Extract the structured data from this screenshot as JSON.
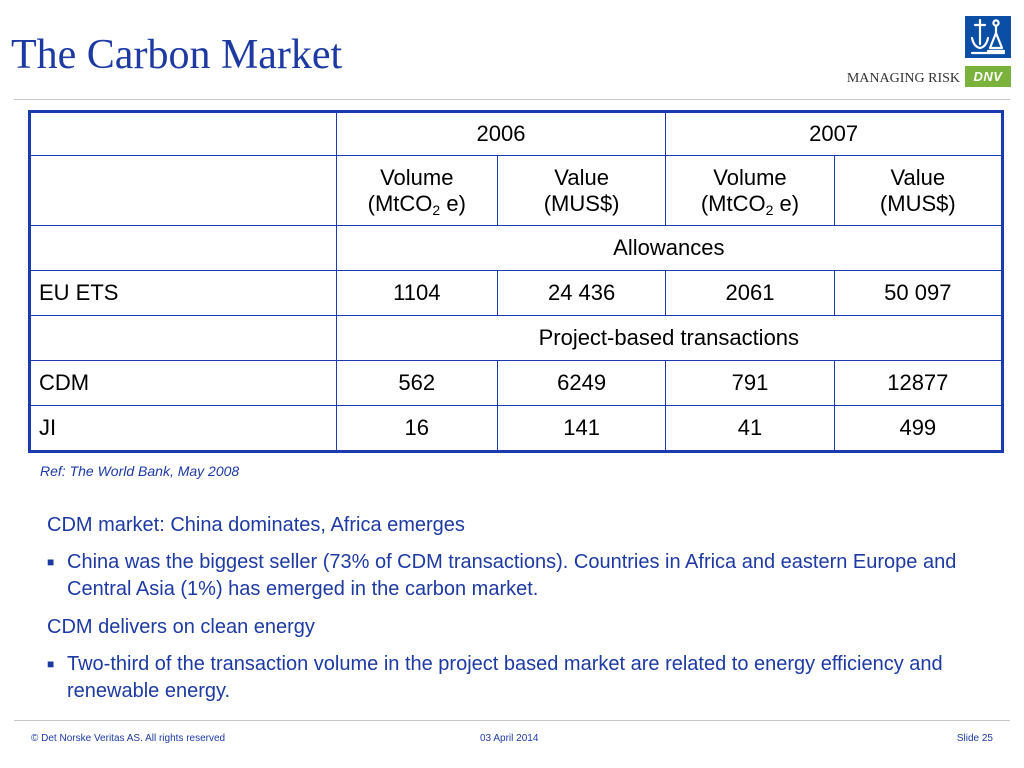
{
  "slide": {
    "title": "The Carbon Market",
    "logo": {
      "tagline": "MANAGING RISK",
      "brand": "DNV",
      "icon": "dnv-emblem-icon"
    },
    "colors": {
      "title": "#1d3aa3",
      "table_border": "#1c3bb0",
      "logo_blue": "#0a4fa5",
      "logo_green": "#7ab23b"
    }
  },
  "table": {
    "years": [
      "2006",
      "2007"
    ],
    "volume_header": "Volume",
    "volume_unit_pre": "(MtCO",
    "volume_unit_sub": "2",
    "volume_unit_post": " e)",
    "value_header": "Value",
    "value_unit": "(MUS$)",
    "sections": {
      "allowances": "Allowances",
      "project": "Project-based transactions"
    },
    "rows": [
      {
        "label": "EU ETS",
        "values": [
          "1104",
          "24 436",
          "2061",
          "50 097"
        ]
      },
      {
        "label": "CDM",
        "values": [
          "562",
          "6249",
          "791",
          "12877"
        ]
      },
      {
        "label": "JI",
        "values": [
          "16",
          "141",
          "41",
          "499"
        ]
      }
    ]
  },
  "reference": "Ref: The World Bank, May 2008",
  "content": {
    "heading1": "CDM market: China dominates, Africa emerges",
    "bullet1": "China was the biggest seller (73% of CDM transactions). Countries in Africa and eastern Europe  and Central Asia (1%) has emerged in the carbon market.",
    "heading2": "CDM delivers on clean energy",
    "bullet2": "Two-third of the transaction volume in the project based market are related to energy efficiency and renewable energy.",
    "bullet_symbol": "■"
  },
  "footer": {
    "copyright": "© Det Norske Veritas AS. All rights reserved",
    "date": "03 April 2014",
    "slide": "Slide 25"
  }
}
